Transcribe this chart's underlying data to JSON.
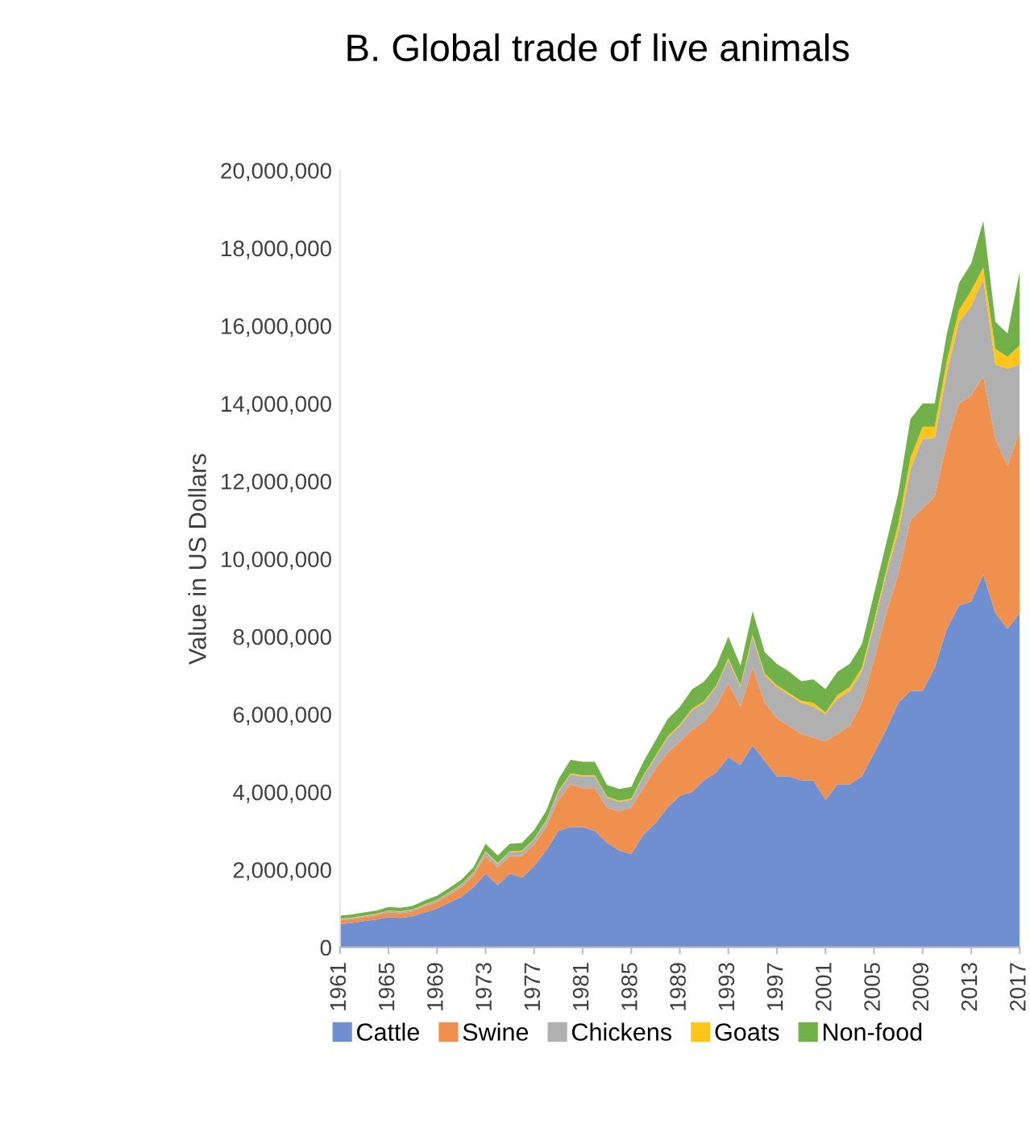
{
  "chart_data": {
    "type": "area",
    "stacked": true,
    "title": "B. Global trade of live animals",
    "ylabel": "Value in US Dollars",
    "categories": [
      "1961",
      null,
      null,
      null,
      "1965",
      null,
      null,
      null,
      "1969",
      null,
      null,
      null,
      "1973",
      null,
      null,
      null,
      "1977",
      null,
      null,
      null,
      "1981",
      null,
      null,
      null,
      "1985",
      null,
      null,
      null,
      "1989",
      null,
      null,
      null,
      "1993",
      null,
      null,
      null,
      "1997",
      null,
      null,
      null,
      "2001",
      null,
      null,
      null,
      "2005",
      null,
      null,
      null,
      "2009",
      null,
      null,
      null,
      "2013",
      null,
      null,
      null,
      "2017"
    ],
    "series": [
      {
        "name": "Cattle",
        "color": "#6f8fd0",
        "values": [
          600000,
          630000,
          680000,
          720000,
          780000,
          760000,
          800000,
          900000,
          1000000,
          1150000,
          1300000,
          1550000,
          1900000,
          1600000,
          1900000,
          1800000,
          2100000,
          2500000,
          3000000,
          3100000,
          3100000,
          3000000,
          2700000,
          2500000,
          2400000,
          2900000,
          3200000,
          3600000,
          3900000,
          4000000,
          4300000,
          4500000,
          4900000,
          4700000,
          5200000,
          4800000,
          4400000,
          4400000,
          4300000,
          4300000,
          3800000,
          4200000,
          4200000,
          4400000,
          5000000,
          5600000,
          6300000,
          6600000,
          6600000,
          7200000,
          8200000,
          8800000,
          8900000,
          9600000,
          8600000,
          8200000,
          8600000
        ]
      },
      {
        "name": "Swine",
        "color": "#f0904f",
        "values": [
          100000,
          100000,
          100000,
          110000,
          120000,
          120000,
          130000,
          150000,
          170000,
          200000,
          250000,
          300000,
          450000,
          450000,
          450000,
          550000,
          550000,
          600000,
          800000,
          1100000,
          1000000,
          1100000,
          900000,
          1000000,
          1200000,
          1200000,
          1400000,
          1400000,
          1400000,
          1600000,
          1500000,
          1700000,
          1900000,
          1500000,
          2000000,
          1500000,
          1500000,
          1300000,
          1200000,
          1100000,
          1500000,
          1300000,
          1500000,
          1900000,
          2400000,
          3000000,
          3300000,
          4400000,
          4700000,
          4400000,
          4800000,
          5200000,
          5300000,
          5100000,
          4500000,
          4200000,
          4700000
        ]
      },
      {
        "name": "Chickens",
        "color": "#b0b0b0",
        "values": [
          30000,
          30000,
          30000,
          30000,
          40000,
          40000,
          40000,
          50000,
          50000,
          60000,
          60000,
          70000,
          100000,
          100000,
          100000,
          120000,
          130000,
          150000,
          200000,
          250000,
          300000,
          300000,
          250000,
          250000,
          200000,
          300000,
          300000,
          400000,
          400000,
          500000,
          500000,
          500000,
          600000,
          500000,
          800000,
          700000,
          800000,
          800000,
          800000,
          800000,
          700000,
          900000,
          900000,
          800000,
          900000,
          1000000,
          1100000,
          1300000,
          1800000,
          1500000,
          1800000,
          2100000,
          2300000,
          2500000,
          1900000,
          2500000,
          1700000
        ]
      },
      {
        "name": "Goats",
        "color": "#ffc51a",
        "values": [
          10000,
          10000,
          10000,
          10000,
          10000,
          10000,
          10000,
          10000,
          10000,
          10000,
          10000,
          10000,
          20000,
          20000,
          20000,
          20000,
          20000,
          20000,
          30000,
          30000,
          30000,
          30000,
          30000,
          30000,
          30000,
          30000,
          30000,
          30000,
          40000,
          40000,
          40000,
          40000,
          50000,
          50000,
          50000,
          50000,
          50000,
          50000,
          50000,
          100000,
          50000,
          100000,
          100000,
          100000,
          100000,
          100000,
          200000,
          300000,
          300000,
          300000,
          300000,
          300000,
          400000,
          300000,
          400000,
          300000,
          500000
        ]
      },
      {
        "name": "Non-food",
        "color": "#72b04a",
        "values": [
          80000,
          80000,
          80000,
          80000,
          90000,
          90000,
          90000,
          100000,
          100000,
          110000,
          120000,
          130000,
          200000,
          200000,
          200000,
          200000,
          220000,
          250000,
          300000,
          350000,
          350000,
          350000,
          300000,
          300000,
          300000,
          350000,
          400000,
          450000,
          450000,
          500000,
          500000,
          500000,
          550000,
          500000,
          600000,
          550000,
          550000,
          550000,
          500000,
          600000,
          600000,
          600000,
          600000,
          600000,
          700000,
          700000,
          800000,
          1000000,
          600000,
          600000,
          700000,
          700000,
          700000,
          1200000,
          700000,
          600000,
          1900000
        ]
      }
    ],
    "ylim": [
      0,
      20000000
    ],
    "yticks": [
      0,
      {
        "value": 2000000,
        "label": "2,000,000"
      },
      {
        "value": 4000000,
        "label": "4,000,000"
      },
      {
        "value": 6000000,
        "label": "6,000,000"
      },
      {
        "value": 8000000,
        "label": "8,000,000"
      },
      {
        "value": 10000000,
        "label": "10,000,000"
      },
      {
        "value": 12000000,
        "label": "12,000,000"
      },
      {
        "value": 14000000,
        "label": "14,000,000"
      },
      {
        "value": 16000000,
        "label": "16,000,000"
      },
      {
        "value": 18000000,
        "label": "18,000,000"
      },
      {
        "value": 20000000,
        "label": "20,000,000"
      }
    ],
    "grid": false,
    "legend": "bottom"
  }
}
